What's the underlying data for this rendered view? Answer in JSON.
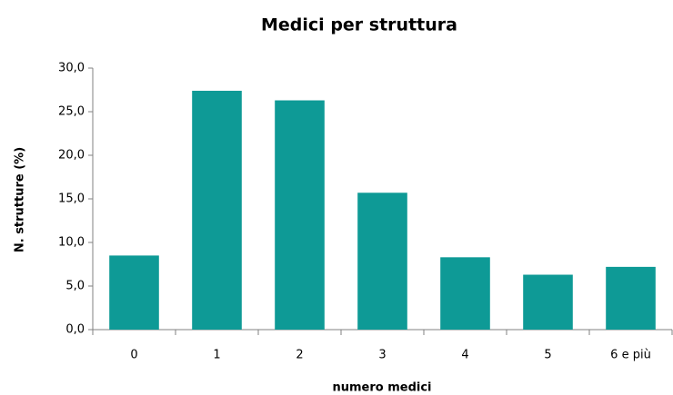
{
  "chart_data": {
    "type": "bar",
    "title": "Medici per struttura",
    "x_label": "numero medici",
    "y_label": "N. strutture (%)",
    "categories": [
      "0",
      "1",
      "2",
      "3",
      "4",
      "5",
      "6 e più"
    ],
    "values": [
      8.5,
      27.4,
      26.3,
      15.7,
      8.3,
      6.3,
      7.2
    ],
    "color": "#0e9a96",
    "ylim": [
      0,
      30
    ],
    "yticks": [
      {
        "value": 0,
        "label": "0,0"
      },
      {
        "value": 5,
        "label": "5,0"
      },
      {
        "value": 10,
        "label": "10,0"
      },
      {
        "value": 15,
        "label": "15,0"
      },
      {
        "value": 20,
        "label": "20,0"
      },
      {
        "value": 25,
        "label": "25,0"
      },
      {
        "value": 30,
        "label": "30,0"
      }
    ],
    "grid": false
  }
}
